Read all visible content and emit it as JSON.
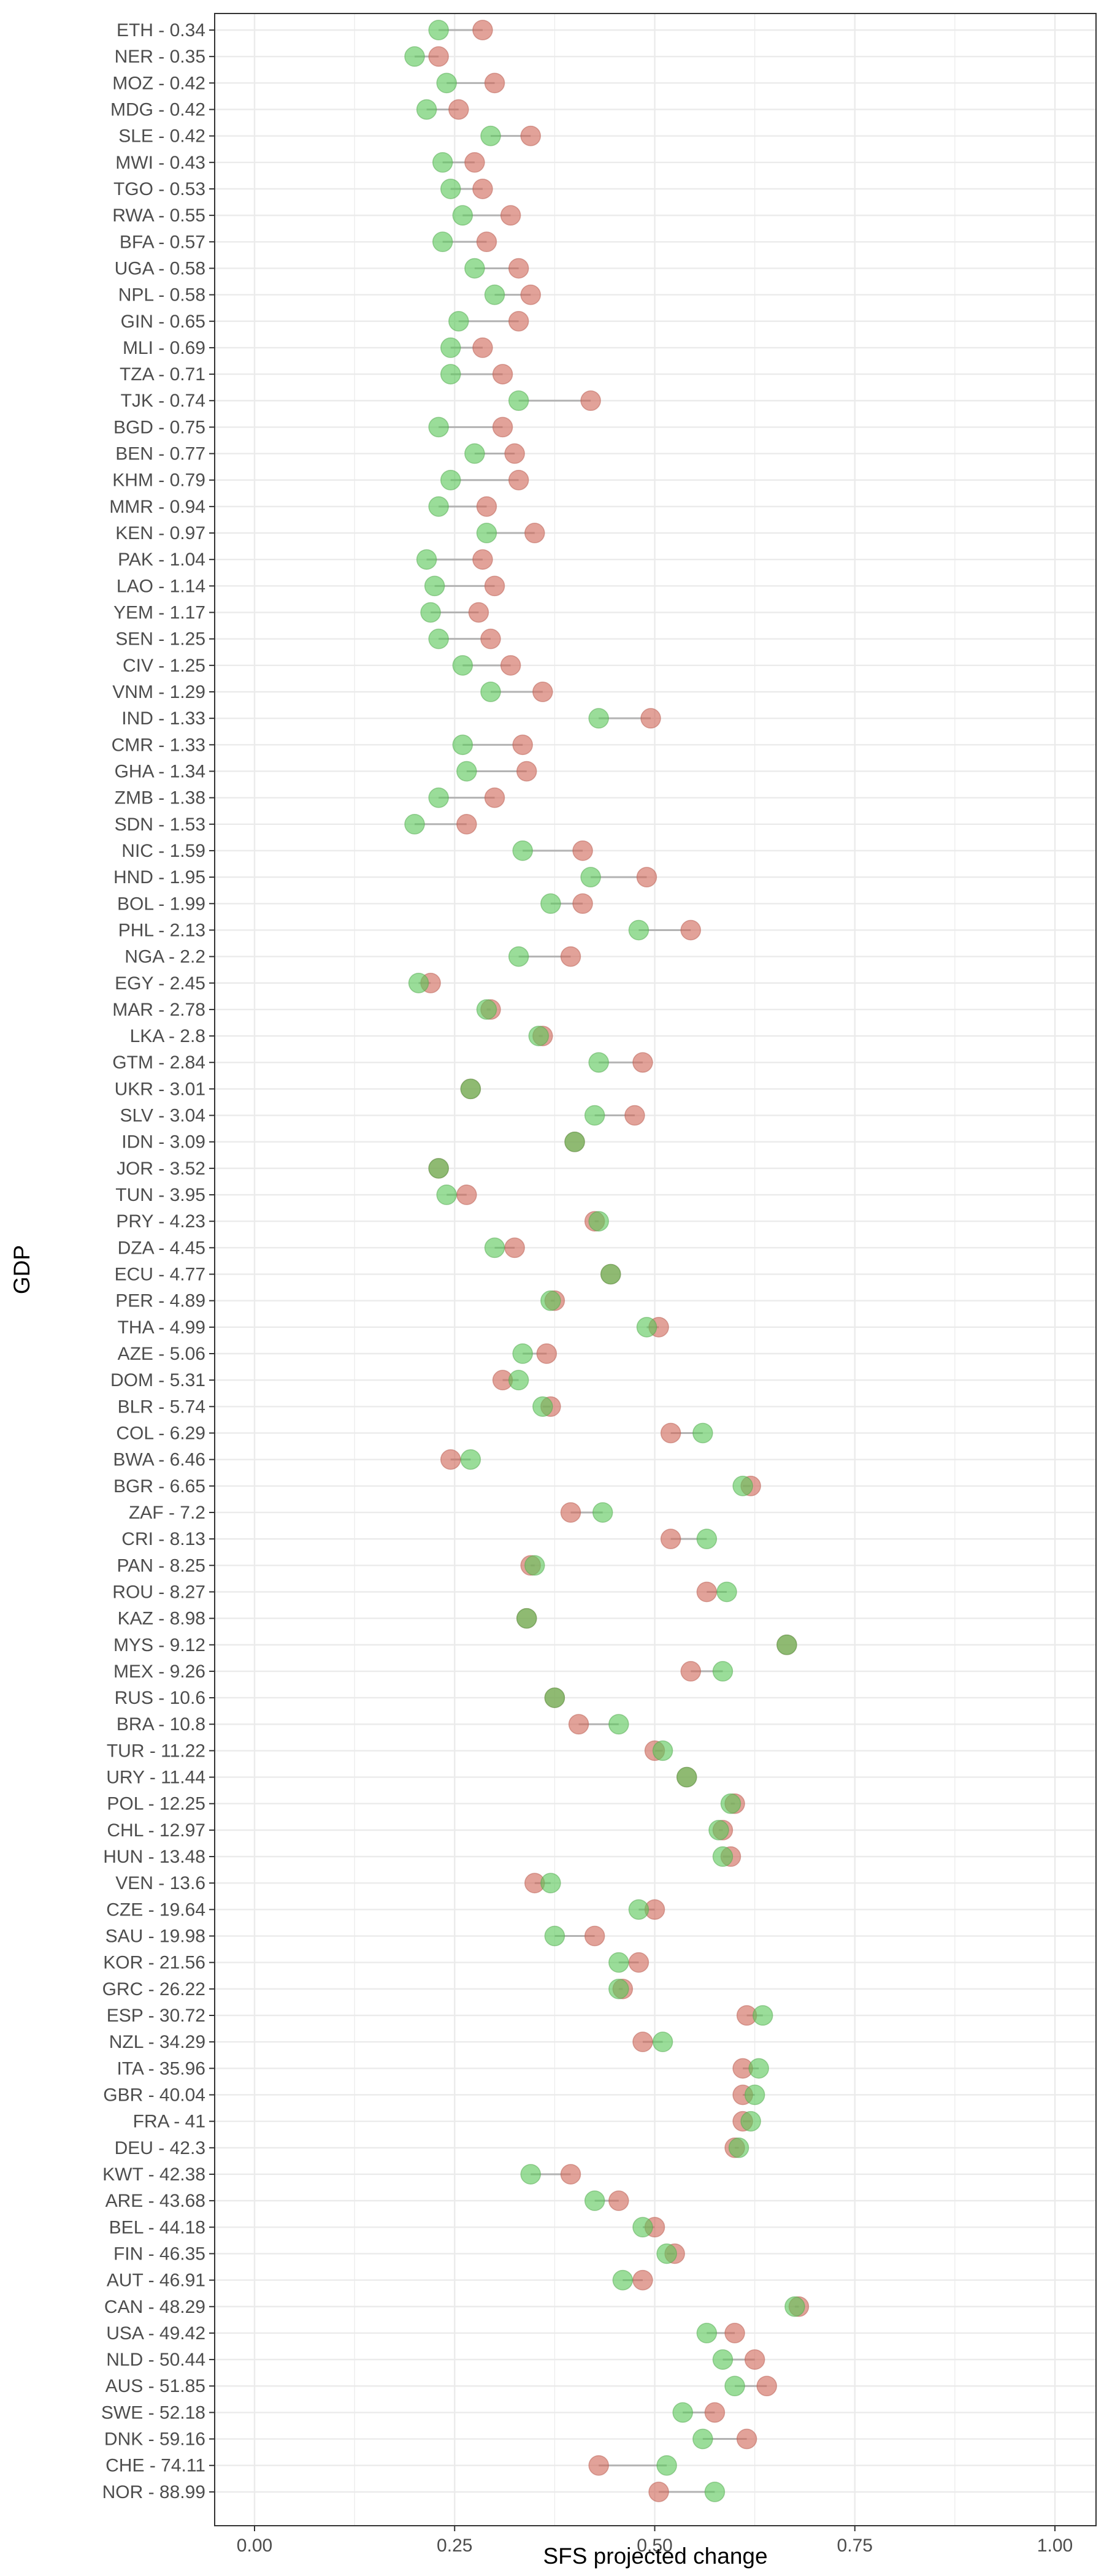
{
  "chart_data": {
    "type": "dumbbell",
    "xlabel": "SFS projected change",
    "ylabel": "GDP",
    "xlim": [
      0,
      1
    ],
    "x_ticks": [
      "0.00",
      "0.25",
      "0.50",
      "0.75",
      "1.00"
    ],
    "grid": true,
    "legend": "none",
    "colors": {
      "green": "#5cc85a",
      "red": "#d0695b",
      "segment": "#b3b3b3",
      "panel_border": "#333333",
      "grid": "#ebebeb"
    },
    "rows": [
      {
        "label": "ETH - 0.34",
        "green": 0.23,
        "red": 0.285
      },
      {
        "label": "NER - 0.35",
        "green": 0.2,
        "red": 0.23
      },
      {
        "label": "MOZ - 0.42",
        "green": 0.24,
        "red": 0.3
      },
      {
        "label": "MDG - 0.42",
        "green": 0.215,
        "red": 0.255
      },
      {
        "label": "SLE - 0.42",
        "green": 0.295,
        "red": 0.345
      },
      {
        "label": "MWI - 0.43",
        "green": 0.235,
        "red": 0.275
      },
      {
        "label": "TGO - 0.53",
        "green": 0.245,
        "red": 0.285
      },
      {
        "label": "RWA - 0.55",
        "green": 0.26,
        "red": 0.32
      },
      {
        "label": "BFA - 0.57",
        "green": 0.235,
        "red": 0.29
      },
      {
        "label": "UGA - 0.58",
        "green": 0.275,
        "red": 0.33
      },
      {
        "label": "NPL - 0.58",
        "green": 0.3,
        "red": 0.345
      },
      {
        "label": "GIN - 0.65",
        "green": 0.255,
        "red": 0.33
      },
      {
        "label": "MLI - 0.69",
        "green": 0.245,
        "red": 0.285
      },
      {
        "label": "TZA - 0.71",
        "green": 0.245,
        "red": 0.31
      },
      {
        "label": "TJK - 0.74",
        "green": 0.33,
        "red": 0.42
      },
      {
        "label": "BGD - 0.75",
        "green": 0.23,
        "red": 0.31
      },
      {
        "label": "BEN - 0.77",
        "green": 0.275,
        "red": 0.325
      },
      {
        "label": "KHM - 0.79",
        "green": 0.245,
        "red": 0.33
      },
      {
        "label": "MMR - 0.94",
        "green": 0.23,
        "red": 0.29
      },
      {
        "label": "KEN - 0.97",
        "green": 0.29,
        "red": 0.35
      },
      {
        "label": "PAK - 1.04",
        "green": 0.215,
        "red": 0.285
      },
      {
        "label": "LAO - 1.14",
        "green": 0.225,
        "red": 0.3
      },
      {
        "label": "YEM - 1.17",
        "green": 0.22,
        "red": 0.28
      },
      {
        "label": "SEN - 1.25",
        "green": 0.23,
        "red": 0.295
      },
      {
        "label": "CIV - 1.25",
        "green": 0.26,
        "red": 0.32
      },
      {
        "label": "VNM - 1.29",
        "green": 0.295,
        "red": 0.36
      },
      {
        "label": "IND - 1.33",
        "green": 0.43,
        "red": 0.495
      },
      {
        "label": "CMR - 1.33",
        "green": 0.26,
        "red": 0.335
      },
      {
        "label": "GHA - 1.34",
        "green": 0.265,
        "red": 0.34
      },
      {
        "label": "ZMB - 1.38",
        "green": 0.23,
        "red": 0.3
      },
      {
        "label": "SDN - 1.53",
        "green": 0.2,
        "red": 0.265
      },
      {
        "label": "NIC - 1.59",
        "green": 0.335,
        "red": 0.41
      },
      {
        "label": "HND - 1.95",
        "green": 0.42,
        "red": 0.49
      },
      {
        "label": "BOL - 1.99",
        "green": 0.37,
        "red": 0.41
      },
      {
        "label": "PHL - 2.13",
        "green": 0.48,
        "red": 0.545
      },
      {
        "label": "NGA - 2.2",
        "green": 0.33,
        "red": 0.395
      },
      {
        "label": "EGY - 2.45",
        "green": 0.205,
        "red": 0.22
      },
      {
        "label": "MAR - 2.78",
        "green": 0.29,
        "red": 0.295
      },
      {
        "label": "LKA - 2.8",
        "green": 0.355,
        "red": 0.36
      },
      {
        "label": "GTM - 2.84",
        "green": 0.43,
        "red": 0.485
      },
      {
        "label": "UKR - 3.01",
        "green": 0.27,
        "red": 0.27
      },
      {
        "label": "SLV - 3.04",
        "green": 0.425,
        "red": 0.475
      },
      {
        "label": "IDN - 3.09",
        "green": 0.4,
        "red": 0.4
      },
      {
        "label": "JOR - 3.52",
        "green": 0.23,
        "red": 0.23
      },
      {
        "label": "TUN - 3.95",
        "green": 0.24,
        "red": 0.265
      },
      {
        "label": "PRY - 4.23",
        "green": 0.43,
        "red": 0.425
      },
      {
        "label": "DZA - 4.45",
        "green": 0.3,
        "red": 0.325
      },
      {
        "label": "ECU - 4.77",
        "green": 0.445,
        "red": 0.445
      },
      {
        "label": "PER - 4.89",
        "green": 0.37,
        "red": 0.375
      },
      {
        "label": "THA - 4.99",
        "green": 0.49,
        "red": 0.505
      },
      {
        "label": "AZE - 5.06",
        "green": 0.335,
        "red": 0.365
      },
      {
        "label": "DOM - 5.31",
        "green": 0.33,
        "red": 0.31
      },
      {
        "label": "BLR - 5.74",
        "green": 0.36,
        "red": 0.37
      },
      {
        "label": "COL - 6.29",
        "green": 0.56,
        "red": 0.52
      },
      {
        "label": "BWA - 6.46",
        "green": 0.27,
        "red": 0.245
      },
      {
        "label": "BGR - 6.65",
        "green": 0.61,
        "red": 0.62
      },
      {
        "label": "ZAF - 7.2",
        "green": 0.435,
        "red": 0.395
      },
      {
        "label": "CRI - 8.13",
        "green": 0.565,
        "red": 0.52
      },
      {
        "label": "PAN - 8.25",
        "green": 0.35,
        "red": 0.345
      },
      {
        "label": "ROU - 8.27",
        "green": 0.59,
        "red": 0.565
      },
      {
        "label": "KAZ - 8.98",
        "green": 0.34,
        "red": 0.34
      },
      {
        "label": "MYS - 9.12",
        "green": 0.665,
        "red": 0.665
      },
      {
        "label": "MEX - 9.26",
        "green": 0.585,
        "red": 0.545
      },
      {
        "label": "RUS - 10.6",
        "green": 0.375,
        "red": 0.375
      },
      {
        "label": "BRA - 10.8",
        "green": 0.455,
        "red": 0.405
      },
      {
        "label": "TUR - 11.22",
        "green": 0.51,
        "red": 0.5
      },
      {
        "label": "URY - 11.44",
        "green": 0.54,
        "red": 0.54
      },
      {
        "label": "POL - 12.25",
        "green": 0.595,
        "red": 0.6
      },
      {
        "label": "CHL - 12.97",
        "green": 0.58,
        "red": 0.585
      },
      {
        "label": "HUN - 13.48",
        "green": 0.585,
        "red": 0.595
      },
      {
        "label": "VEN - 13.6",
        "green": 0.37,
        "red": 0.35
      },
      {
        "label": "CZE - 19.64",
        "green": 0.48,
        "red": 0.5
      },
      {
        "label": "SAU - 19.98",
        "green": 0.375,
        "red": 0.425
      },
      {
        "label": "KOR - 21.56",
        "green": 0.455,
        "red": 0.48
      },
      {
        "label": "GRC - 26.22",
        "green": 0.455,
        "red": 0.46
      },
      {
        "label": "ESP - 30.72",
        "green": 0.635,
        "red": 0.615
      },
      {
        "label": "NZL - 34.29",
        "green": 0.51,
        "red": 0.485
      },
      {
        "label": "ITA - 35.96",
        "green": 0.63,
        "red": 0.61
      },
      {
        "label": "GBR - 40.04",
        "green": 0.625,
        "red": 0.61
      },
      {
        "label": "FRA - 41",
        "green": 0.62,
        "red": 0.61
      },
      {
        "label": "DEU - 42.3",
        "green": 0.605,
        "red": 0.6
      },
      {
        "label": "KWT - 42.38",
        "green": 0.345,
        "red": 0.395
      },
      {
        "label": "ARE - 43.68",
        "green": 0.425,
        "red": 0.455
      },
      {
        "label": "BEL - 44.18",
        "green": 0.485,
        "red": 0.5
      },
      {
        "label": "FIN - 46.35",
        "green": 0.515,
        "red": 0.525
      },
      {
        "label": "AUT - 46.91",
        "green": 0.46,
        "red": 0.485
      },
      {
        "label": "CAN - 48.29",
        "green": 0.675,
        "red": 0.68
      },
      {
        "label": "USA - 49.42",
        "green": 0.565,
        "red": 0.6
      },
      {
        "label": "NLD - 50.44",
        "green": 0.585,
        "red": 0.625
      },
      {
        "label": "AUS - 51.85",
        "green": 0.6,
        "red": 0.64
      },
      {
        "label": "SWE - 52.18",
        "green": 0.535,
        "red": 0.575
      },
      {
        "label": "DNK - 59.16",
        "green": 0.56,
        "red": 0.615
      },
      {
        "label": "CHE - 74.11",
        "green": 0.515,
        "red": 0.43
      },
      {
        "label": "NOR - 88.99",
        "green": 0.575,
        "red": 0.505
      }
    ]
  }
}
